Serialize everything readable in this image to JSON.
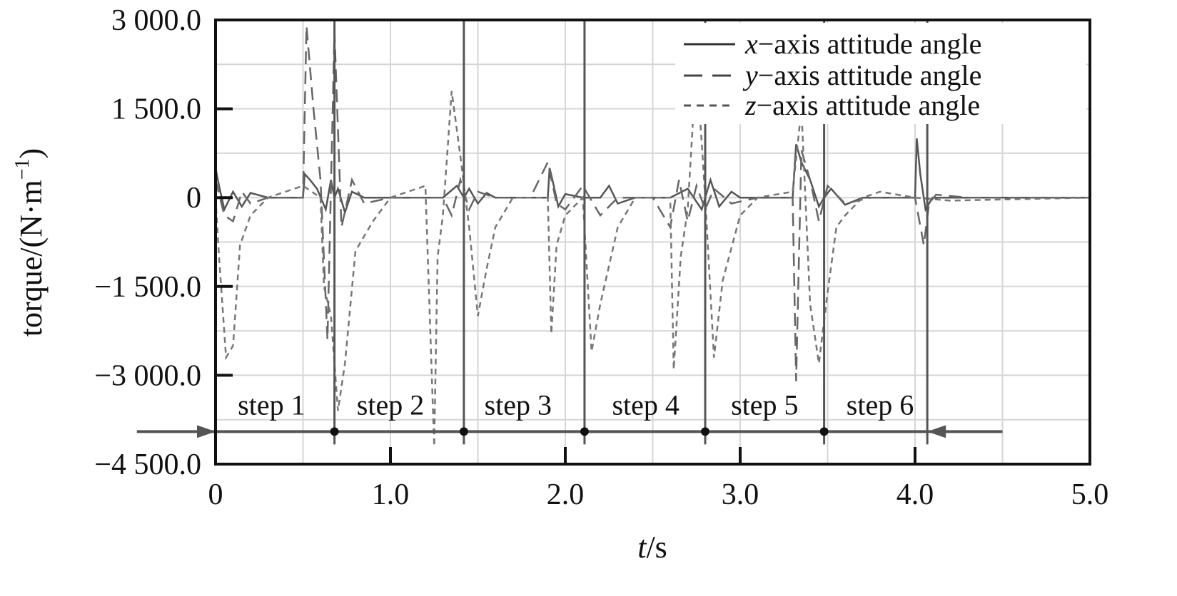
{
  "chart_data": {
    "type": "line",
    "title": "",
    "xlabel_italic": "t",
    "xlabel_unit": "/s",
    "ylabel": "torque/(N·m",
    "ylabel_sup": "−1",
    "ylabel_close": ")",
    "xlim": [
      0,
      5.0
    ],
    "ylim": [
      -4500,
      3000
    ],
    "xticks": [
      0,
      1.0,
      2.0,
      3.0,
      4.0,
      5.0
    ],
    "xtick_labels": [
      "0",
      "1.0",
      "2.0",
      "3.0",
      "4.0",
      "5.0"
    ],
    "yticks": [
      3000,
      1500,
      0,
      -1500,
      -3000,
      -4500
    ],
    "ytick_labels": [
      "3 000.0",
      "1 500.0",
      "0",
      "−1 500.0",
      "−3 000.0",
      "−4 500.0"
    ],
    "grid": true,
    "legend_position": "top-right",
    "legend": [
      {
        "var": "x",
        "rest": "−axis attitude angle"
      },
      {
        "var": "y",
        "rest": "−axis attitude angle"
      },
      {
        "var": "z",
        "rest": "−axis attitude angle"
      }
    ],
    "step_boundaries": [
      0,
      0.68,
      1.42,
      2.11,
      2.8,
      3.48,
      4.07
    ],
    "step_labels": [
      {
        "text": "step 1",
        "x": 0.32
      },
      {
        "text": "step 2",
        "x": 1.0
      },
      {
        "text": "step 3",
        "x": 1.73
      },
      {
        "text": "step 4",
        "x": 2.46
      },
      {
        "text": "step 5",
        "x": 3.14
      },
      {
        "text": "step 6",
        "x": 3.8
      }
    ],
    "step_axis_y": -3950,
    "arrow_extent": [
      -0.45,
      4.5
    ],
    "series": [
      {
        "name": "x−axis attitude angle",
        "x": [
          0,
          0.02,
          0.05,
          0.1,
          0.15,
          0.2,
          0.3,
          0.5,
          0.51,
          0.54,
          0.58,
          0.63,
          0.66,
          0.68,
          0.7,
          0.74,
          0.78,
          0.85,
          1.0,
          1.3,
          1.38,
          1.42,
          1.45,
          1.5,
          1.55,
          1.6,
          1.7,
          1.9,
          1.91,
          1.93,
          1.96,
          2.0,
          2.1,
          2.2,
          2.25,
          2.3,
          2.4,
          2.6,
          2.7,
          2.78,
          2.8,
          2.83,
          2.88,
          2.95,
          3.0,
          3.1,
          3.3,
          3.32,
          3.35,
          3.4,
          3.45,
          3.48,
          3.52,
          3.6,
          3.7,
          3.9,
          4.0,
          4.01,
          4.03,
          4.06,
          4.1,
          4.3,
          5.0
        ],
        "y": [
          500,
          200,
          -200,
          100,
          -150,
          80,
          0,
          0,
          400,
          300,
          150,
          -200,
          300,
          0,
          150,
          -250,
          100,
          0,
          0,
          0,
          200,
          0,
          150,
          -100,
          80,
          0,
          0,
          0,
          500,
          250,
          -150,
          60,
          0,
          0,
          200,
          -100,
          0,
          0,
          150,
          -200,
          0,
          300,
          -150,
          100,
          0,
          0,
          0,
          900,
          600,
          300,
          -150,
          0,
          150,
          -120,
          0,
          0,
          0,
          1000,
          400,
          -200,
          0,
          0,
          0
        ]
      },
      {
        "name": "y−axis attitude angle",
        "x": [
          0,
          0.05,
          0.1,
          0.15,
          0.2,
          0.3,
          0.5,
          0.52,
          0.56,
          0.6,
          0.64,
          0.68,
          0.72,
          0.78,
          0.85,
          1.0,
          1.3,
          1.35,
          1.4,
          1.45,
          1.5,
          1.6,
          1.8,
          1.9,
          1.95,
          2.0,
          2.1,
          2.2,
          2.3,
          2.5,
          2.6,
          2.65,
          2.7,
          2.75,
          2.8,
          2.85,
          2.95,
          3.1,
          3.3,
          3.32,
          3.35,
          3.4,
          3.45,
          3.5,
          3.6,
          3.75,
          4.0,
          4.05,
          4.08,
          4.12,
          4.3,
          5.0
        ],
        "y": [
          300,
          -300,
          -400,
          100,
          -100,
          0,
          0,
          2900,
          1500,
          300,
          -2400,
          2800,
          -500,
          300,
          -100,
          0,
          0,
          -300,
          300,
          -200,
          100,
          0,
          0,
          600,
          -100,
          -200,
          200,
          -300,
          0,
          0,
          -500,
          300,
          -400,
          200,
          -200,
          150,
          -100,
          0,
          0,
          -3100,
          800,
          300,
          -400,
          200,
          -100,
          0,
          0,
          -800,
          -100,
          50,
          0,
          0
        ]
      },
      {
        "name": "z−axis attitude angle",
        "x": [
          0,
          0.02,
          0.06,
          0.1,
          0.14,
          0.2,
          0.3,
          0.5,
          0.6,
          0.62,
          0.66,
          0.7,
          0.74,
          0.8,
          0.9,
          1.0,
          1.2,
          1.25,
          1.27,
          1.3,
          1.35,
          1.4,
          1.45,
          1.5,
          1.55,
          1.6,
          1.7,
          1.9,
          1.92,
          1.95,
          2.0,
          2.1,
          2.15,
          2.2,
          2.3,
          2.4,
          2.6,
          2.62,
          2.66,
          2.7,
          2.75,
          2.8,
          2.85,
          2.9,
          3.0,
          3.1,
          3.3,
          3.35,
          3.4,
          3.45,
          3.5,
          3.55,
          3.6,
          3.7,
          3.8,
          4.0,
          4.2,
          5.0
        ],
        "y": [
          0,
          -1000,
          -2700,
          -2500,
          -800,
          -300,
          0,
          200,
          0,
          -1500,
          -2000,
          -3600,
          -2800,
          -900,
          -400,
          0,
          200,
          -4200,
          -1000,
          -300,
          1800,
          700,
          -500,
          -2000,
          -1200,
          -500,
          0,
          0,
          -2300,
          -800,
          -300,
          0,
          -2600,
          -1800,
          -500,
          0,
          0,
          -2900,
          -1000,
          -200,
          2300,
          0,
          -2700,
          -1400,
          -300,
          0,
          100,
          1500,
          -1800,
          -2800,
          -1600,
          -500,
          -300,
          0,
          100,
          0,
          -50,
          0
        ]
      }
    ]
  }
}
